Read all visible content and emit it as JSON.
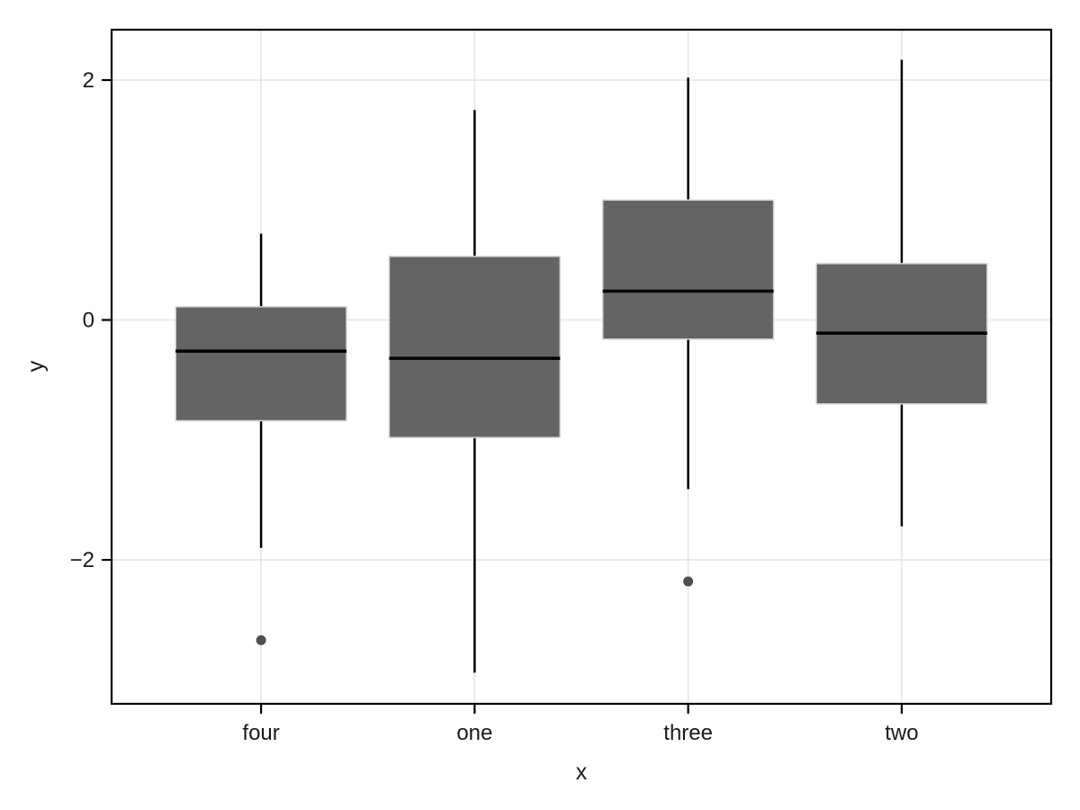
{
  "chart_data": {
    "type": "boxplot",
    "title": "",
    "xlabel": "x",
    "ylabel": "y",
    "categories": [
      "four",
      "one",
      "three",
      "two"
    ],
    "series": [
      {
        "category": "four",
        "whisker_low": -1.9,
        "q1": -0.84,
        "median": -0.26,
        "q3": 0.11,
        "whisker_high": 0.72,
        "outliers": [
          -2.67
        ]
      },
      {
        "category": "one",
        "whisker_low": -2.94,
        "q1": -0.98,
        "median": -0.32,
        "q3": 0.53,
        "whisker_high": 1.75,
        "outliers": []
      },
      {
        "category": "three",
        "whisker_low": -1.41,
        "q1": -0.16,
        "median": 0.24,
        "q3": 1.0,
        "whisker_high": 2.02,
        "outliers": [
          -2.18
        ]
      },
      {
        "category": "two",
        "whisker_low": -1.72,
        "q1": -0.7,
        "median": -0.11,
        "q3": 0.47,
        "whisker_high": 2.17,
        "outliers": []
      }
    ],
    "y_ticks": [
      {
        "value": 2,
        "label": "2"
      },
      {
        "value": 0,
        "label": "0"
      },
      {
        "value": -2,
        "label": "−2"
      }
    ],
    "ylim": [
      -3.2,
      2.42
    ],
    "grid": "both",
    "legend": "none",
    "colors": {
      "background": "#ffffff",
      "box_fill": "#646464",
      "box_edge": "#d5d5d5",
      "median": "#000000",
      "whisker": "#000000",
      "outlier": "#4f4f4f",
      "grid": "#e8e8e8",
      "axis_border": "#000000",
      "tick": "#000000",
      "text": "#1a1a1a"
    }
  }
}
